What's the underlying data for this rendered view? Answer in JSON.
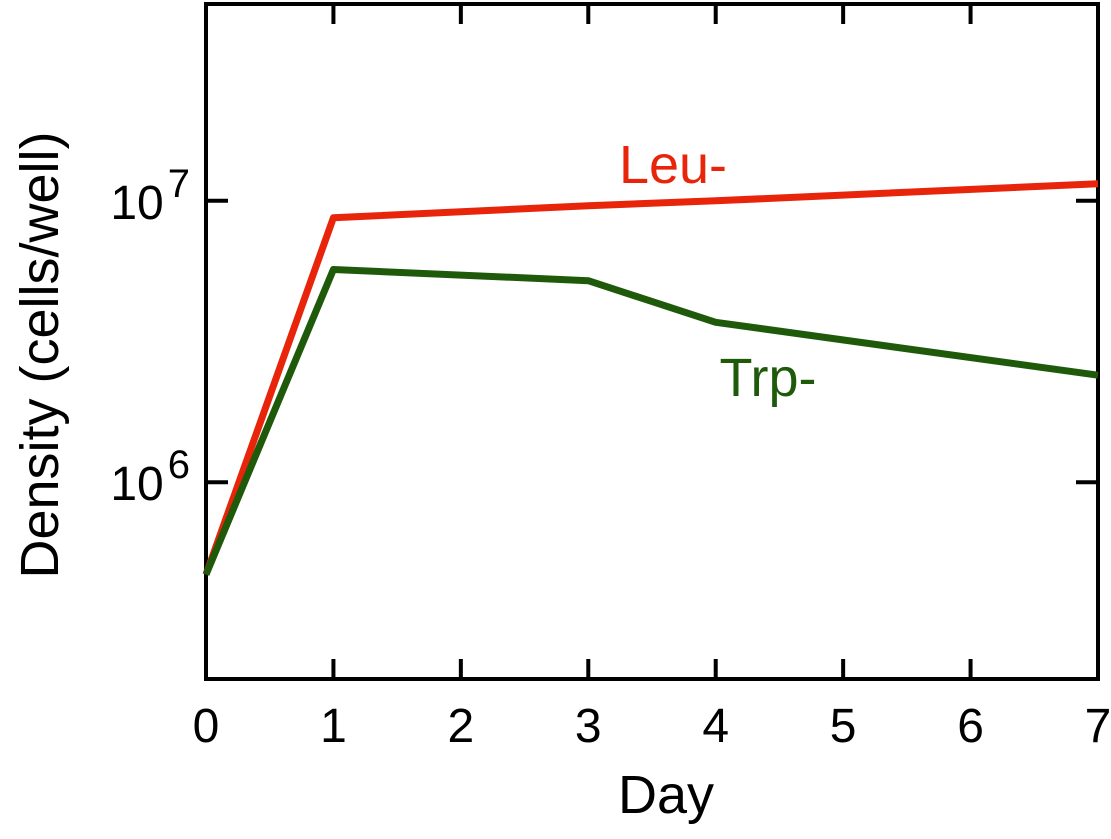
{
  "chart_data": {
    "type": "line",
    "title": "",
    "xlabel": "Day",
    "ylabel": "Density (cells/well)",
    "xlim": [
      0,
      7
    ],
    "ylim": [
      200000,
      50000000
    ],
    "yscale": "log",
    "grid": false,
    "x_ticks": [
      {
        "value": 0,
        "label": "0"
      },
      {
        "value": 1,
        "label": "1"
      },
      {
        "value": 2,
        "label": "2"
      },
      {
        "value": 3,
        "label": "3"
      },
      {
        "value": 4,
        "label": "4"
      },
      {
        "value": 5,
        "label": "5"
      },
      {
        "value": 6,
        "label": "6"
      },
      {
        "value": 7,
        "label": "7"
      }
    ],
    "y_ticks": [
      {
        "value": 1000000,
        "base": "10",
        "exp": "6"
      },
      {
        "value": 10000000,
        "base": "10",
        "exp": "7"
      }
    ],
    "series": [
      {
        "name": "Leu-",
        "color": "#e8250a",
        "points": [
          [
            0,
            470000
          ],
          [
            1,
            8700000
          ],
          [
            3,
            9600000
          ],
          [
            4,
            10000000
          ],
          [
            7,
            11500000
          ]
        ]
      },
      {
        "name": "Trp-",
        "color": "#1f5a0b",
        "points": [
          [
            0,
            470000
          ],
          [
            1,
            5700000
          ],
          [
            3,
            5200000
          ],
          [
            4,
            3700000
          ],
          [
            7,
            2400000
          ]
        ]
      }
    ]
  }
}
